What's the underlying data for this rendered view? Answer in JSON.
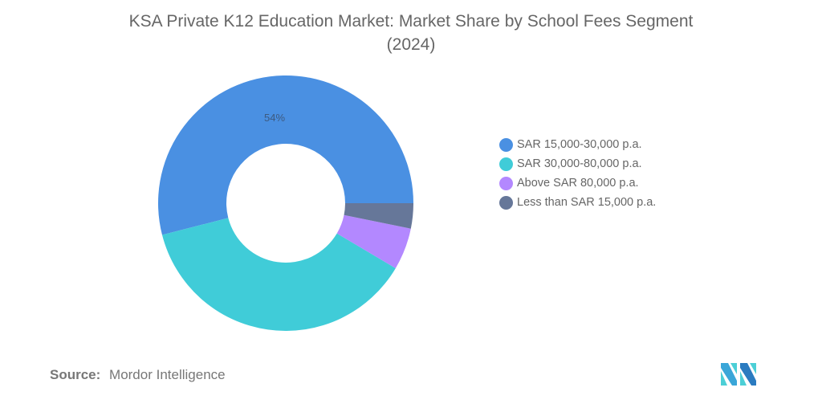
{
  "title_line1": "KSA Private K12 Education Market: Market Share by School Fees Segment",
  "title_line2": "(2024)",
  "source": {
    "label": "Source:",
    "value": "Mordor Intelligence"
  },
  "logo": {
    "icon": "mordor-intelligence-logo-icon"
  },
  "chart_data": {
    "type": "pie",
    "subtype": "donut",
    "title": "KSA Private K12 Education Market: Market Share by School Fees Segment (2024)",
    "categories": [
      "SAR 15,000-30,000 p.a.",
      "SAR 30,000-80,000 p.a.",
      "Above SAR 80,000 p.a.",
      "Less than SAR 15,000 p.a."
    ],
    "values": [
      54,
      37.5,
      5.3,
      3.2
    ],
    "colors": [
      "#4a90e2",
      "#40ccd8",
      "#b388ff",
      "#667799"
    ],
    "data_labels": [
      {
        "category": "SAR 15,000-30,000 p.a.",
        "text": "54%"
      }
    ],
    "legend_position": "right",
    "unit": "%"
  },
  "legend": [
    {
      "label": "SAR 15,000-30,000 p.a.",
      "color": "#4a90e2"
    },
    {
      "label": "SAR 30,000-80,000 p.a.",
      "color": "#40ccd8"
    },
    {
      "label": "Above SAR 80,000 p.a.",
      "color": "#b388ff"
    },
    {
      "label": "Less than SAR 15,000 p.a.",
      "color": "#667799"
    }
  ]
}
